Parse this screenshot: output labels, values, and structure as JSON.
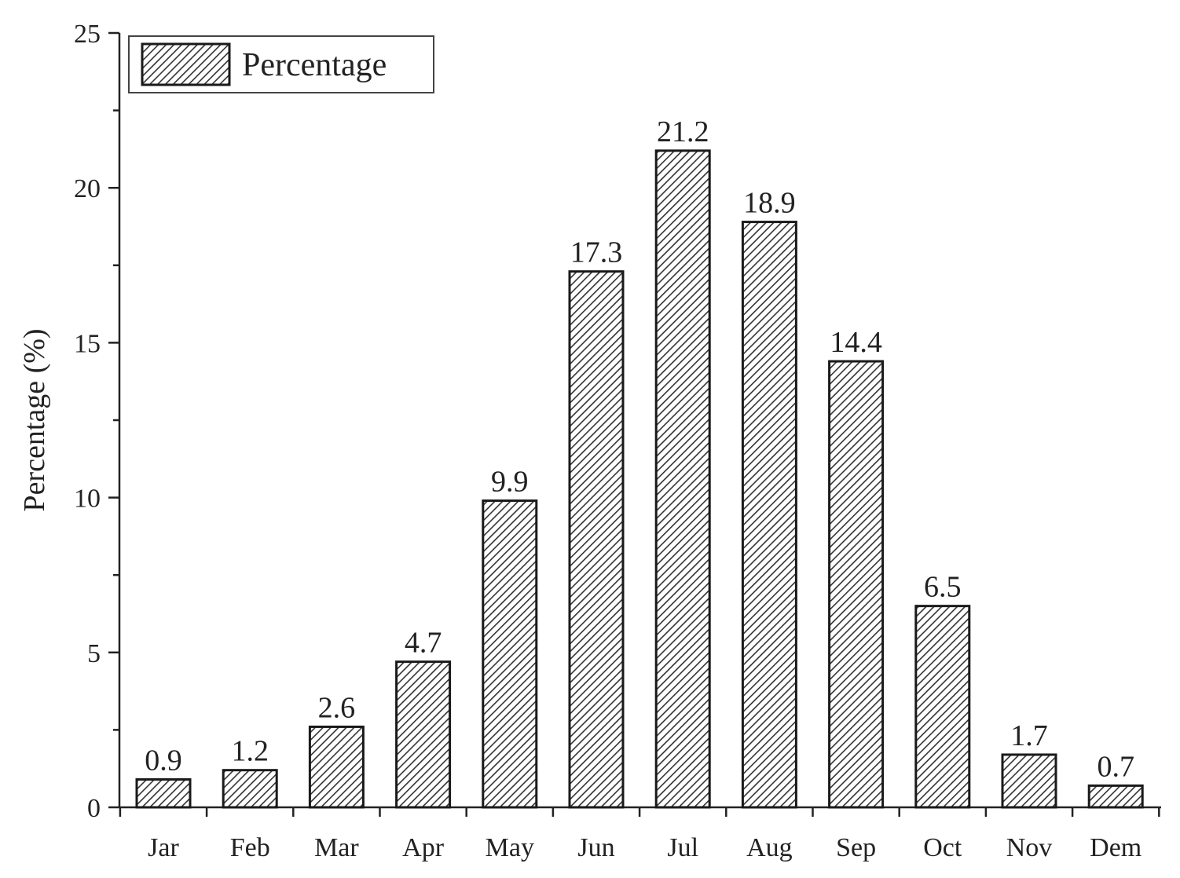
{
  "chart_data": {
    "type": "bar",
    "categories": [
      "Jar",
      "Feb",
      "Mar",
      "Apr",
      "May",
      "Jun",
      "Jul",
      "Aug",
      "Sep",
      "Oct",
      "Nov",
      "Dem"
    ],
    "series": [
      {
        "name": "Percentage",
        "values": [
          0.9,
          1.2,
          2.6,
          4.7,
          9.9,
          17.3,
          21.2,
          18.9,
          14.4,
          6.5,
          1.7,
          0.7
        ]
      }
    ],
    "data_labels": [
      "0.9",
      "1.2",
      "2.6",
      "4.7",
      "9.9",
      "17.3",
      "21.2",
      "18.9",
      "14.4",
      "6.5",
      "1.7",
      "0.7"
    ],
    "xlabel": "",
    "ylabel": "Percentage (%)",
    "ylim": [
      0,
      25
    ],
    "yticks": [
      0,
      5,
      10,
      15,
      20,
      25
    ],
    "legend_position": "top-left",
    "bar_fill": "diagonal-hatch",
    "colors": {
      "bar_fill": "#ffffff",
      "hatch": "#333333",
      "outline": "#1a1a1a"
    }
  }
}
